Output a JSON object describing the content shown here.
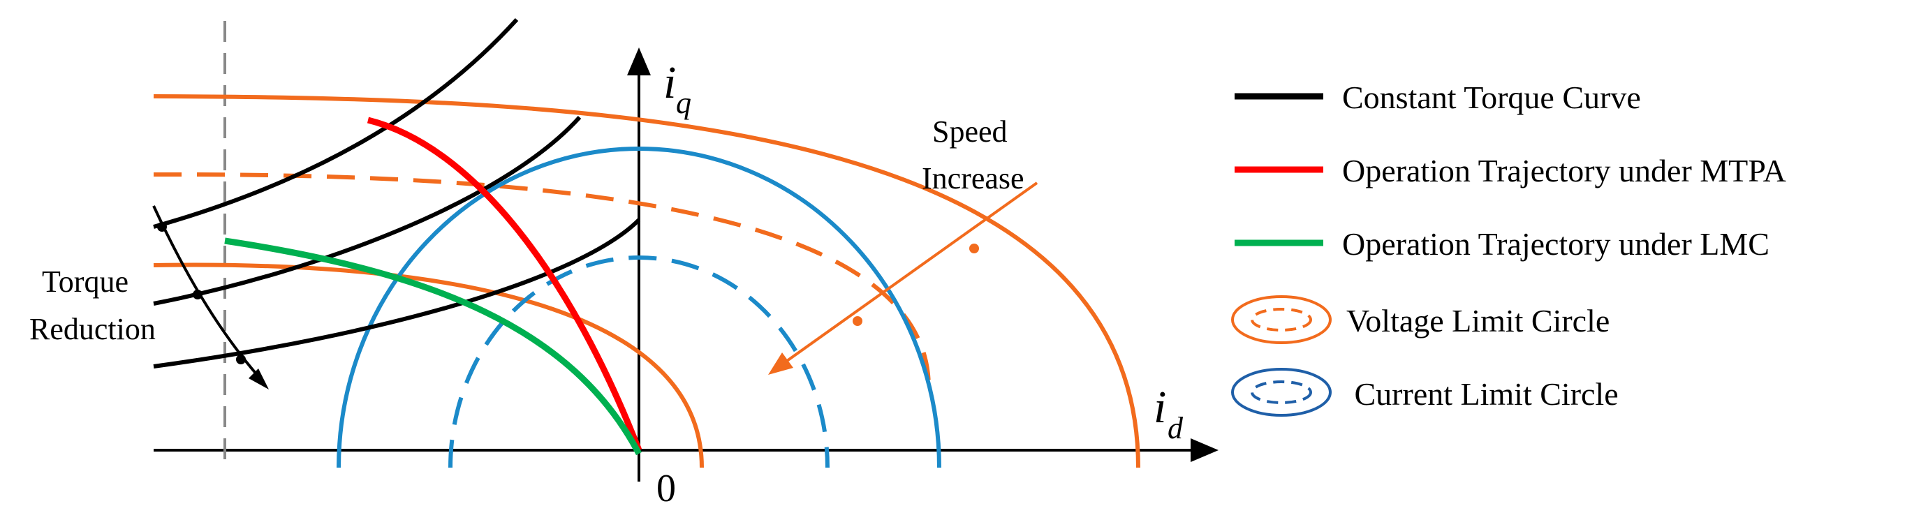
{
  "axes": {
    "x_label": "i",
    "x_sub": "d",
    "y_label": "i",
    "y_sub": "q",
    "origin": "0"
  },
  "annotations": {
    "speed_line1": "Speed",
    "speed_line2": "Increase",
    "torque_line1": "Torque",
    "torque_line2": "Reduction"
  },
  "legend": [
    {
      "label": "Constant Torque Curve",
      "color": "#000000",
      "style": "line"
    },
    {
      "label": "Operation Trajectory under   MTPA",
      "color": "#ff0000",
      "style": "line"
    },
    {
      "label": "Operation Trajectory under   LMC",
      "color": "#00b050",
      "style": "line"
    },
    {
      "label": "Voltage Limit Circle",
      "color": "#f26b1d",
      "style": "ellipse"
    },
    {
      "label": " Current Limit Circle",
      "color": "#1f5fa8",
      "style": "ellipse"
    }
  ],
  "colors": {
    "voltage": "#f26b1d",
    "current": "#1b8ac9",
    "mtpa": "#ff0000",
    "lmc": "#00b050",
    "torque": "#000000",
    "guide": "#888888"
  }
}
